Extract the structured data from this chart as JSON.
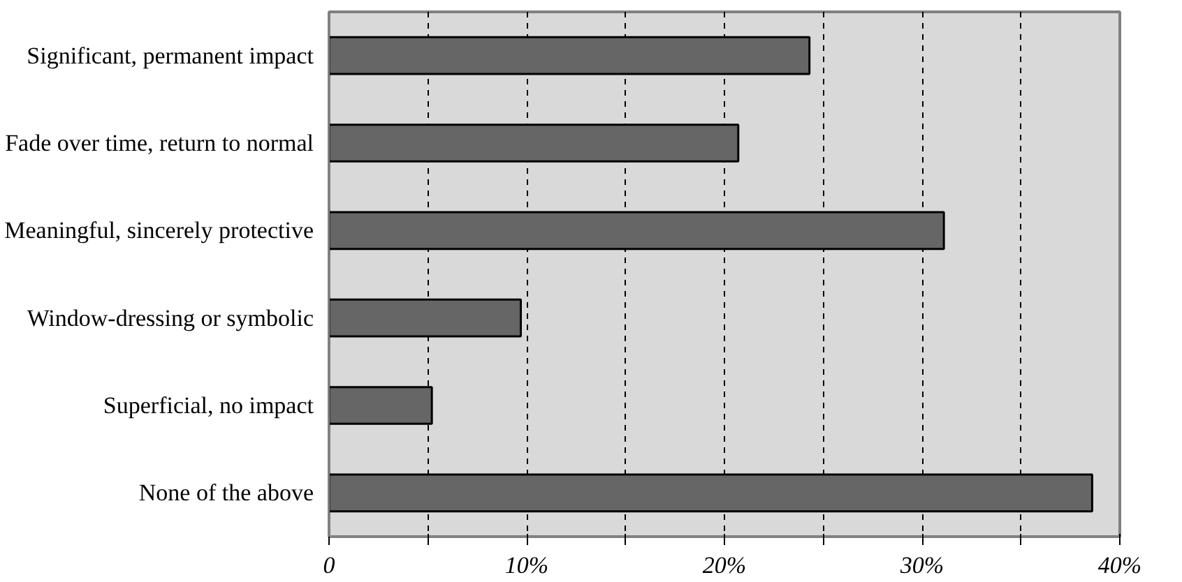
{
  "chart_data": {
    "type": "bar",
    "orientation": "horizontal",
    "categories": [
      "Significant, permanent impact",
      "Fade over time, return to normal",
      "Meaningful, sincerely protective",
      "Window-dressing or symbolic",
      "Superficial, no impact",
      "None of the above"
    ],
    "values": [
      24.3,
      20.7,
      31.1,
      9.7,
      5.2,
      38.6
    ],
    "color": "#666666",
    "xlim": [
      0,
      40
    ],
    "xticks": [
      0,
      {
        "value": 5,
        "label": null
      },
      {
        "value": 10,
        "label": "10%"
      },
      {
        "value": 15,
        "label": null
      },
      {
        "value": 20,
        "label": "20%"
      },
      {
        "value": 25,
        "label": null
      },
      {
        "value": 30,
        "label": "30%"
      },
      {
        "value": 35,
        "label": null
      },
      {
        "value": 40,
        "label": "40%"
      }
    ],
    "grid": "x"
  }
}
